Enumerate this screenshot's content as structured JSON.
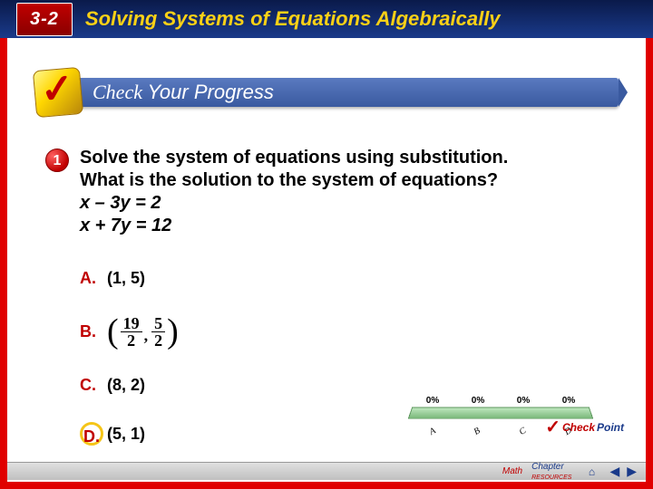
{
  "header": {
    "section": "3-2",
    "title": "Solving Systems of Equations Algebraically",
    "badge_bg": "#c00000",
    "title_color": "#fcd116"
  },
  "banner": {
    "text_prefix": "Check",
    "text_suffix": "Your Progress"
  },
  "question": {
    "marker": "1",
    "line1": "Solve the system of equations using substitution.",
    "line2": "What is the solution to the system of equations?",
    "eq1": "x – 3y = 2",
    "eq2": "x + 7y = 12"
  },
  "answers": {
    "a": {
      "letter": "A.",
      "value": "(1, 5)",
      "correct": false
    },
    "b": {
      "letter": "B.",
      "frac1_n": "19",
      "frac1_d": "2",
      "frac2_n": "5",
      "frac2_d": "2",
      "correct": false
    },
    "c": {
      "letter": "C.",
      "value": "(8, 2)",
      "correct": false
    },
    "d": {
      "letter": "D.",
      "value": "(5, 1)",
      "correct": true
    }
  },
  "chart": {
    "values": [
      "0%",
      "0%",
      "0%",
      "0%"
    ],
    "labels": [
      "A",
      "B",
      "C",
      "D"
    ],
    "base_color": "#7ab87a"
  },
  "checkpoint": {
    "t1": "Check",
    "t2": "Point"
  },
  "footer": {
    "math": "Math",
    "chapter": "Chapter",
    "resources": "RESOURCES",
    "home_icon": "⌂",
    "left_arrow": "◀",
    "right_arrow": "▶"
  },
  "colors": {
    "frame": "#e00000",
    "accent_red": "#c00000",
    "accent_blue": "#1a3a8a",
    "highlight": "#f5c518"
  }
}
